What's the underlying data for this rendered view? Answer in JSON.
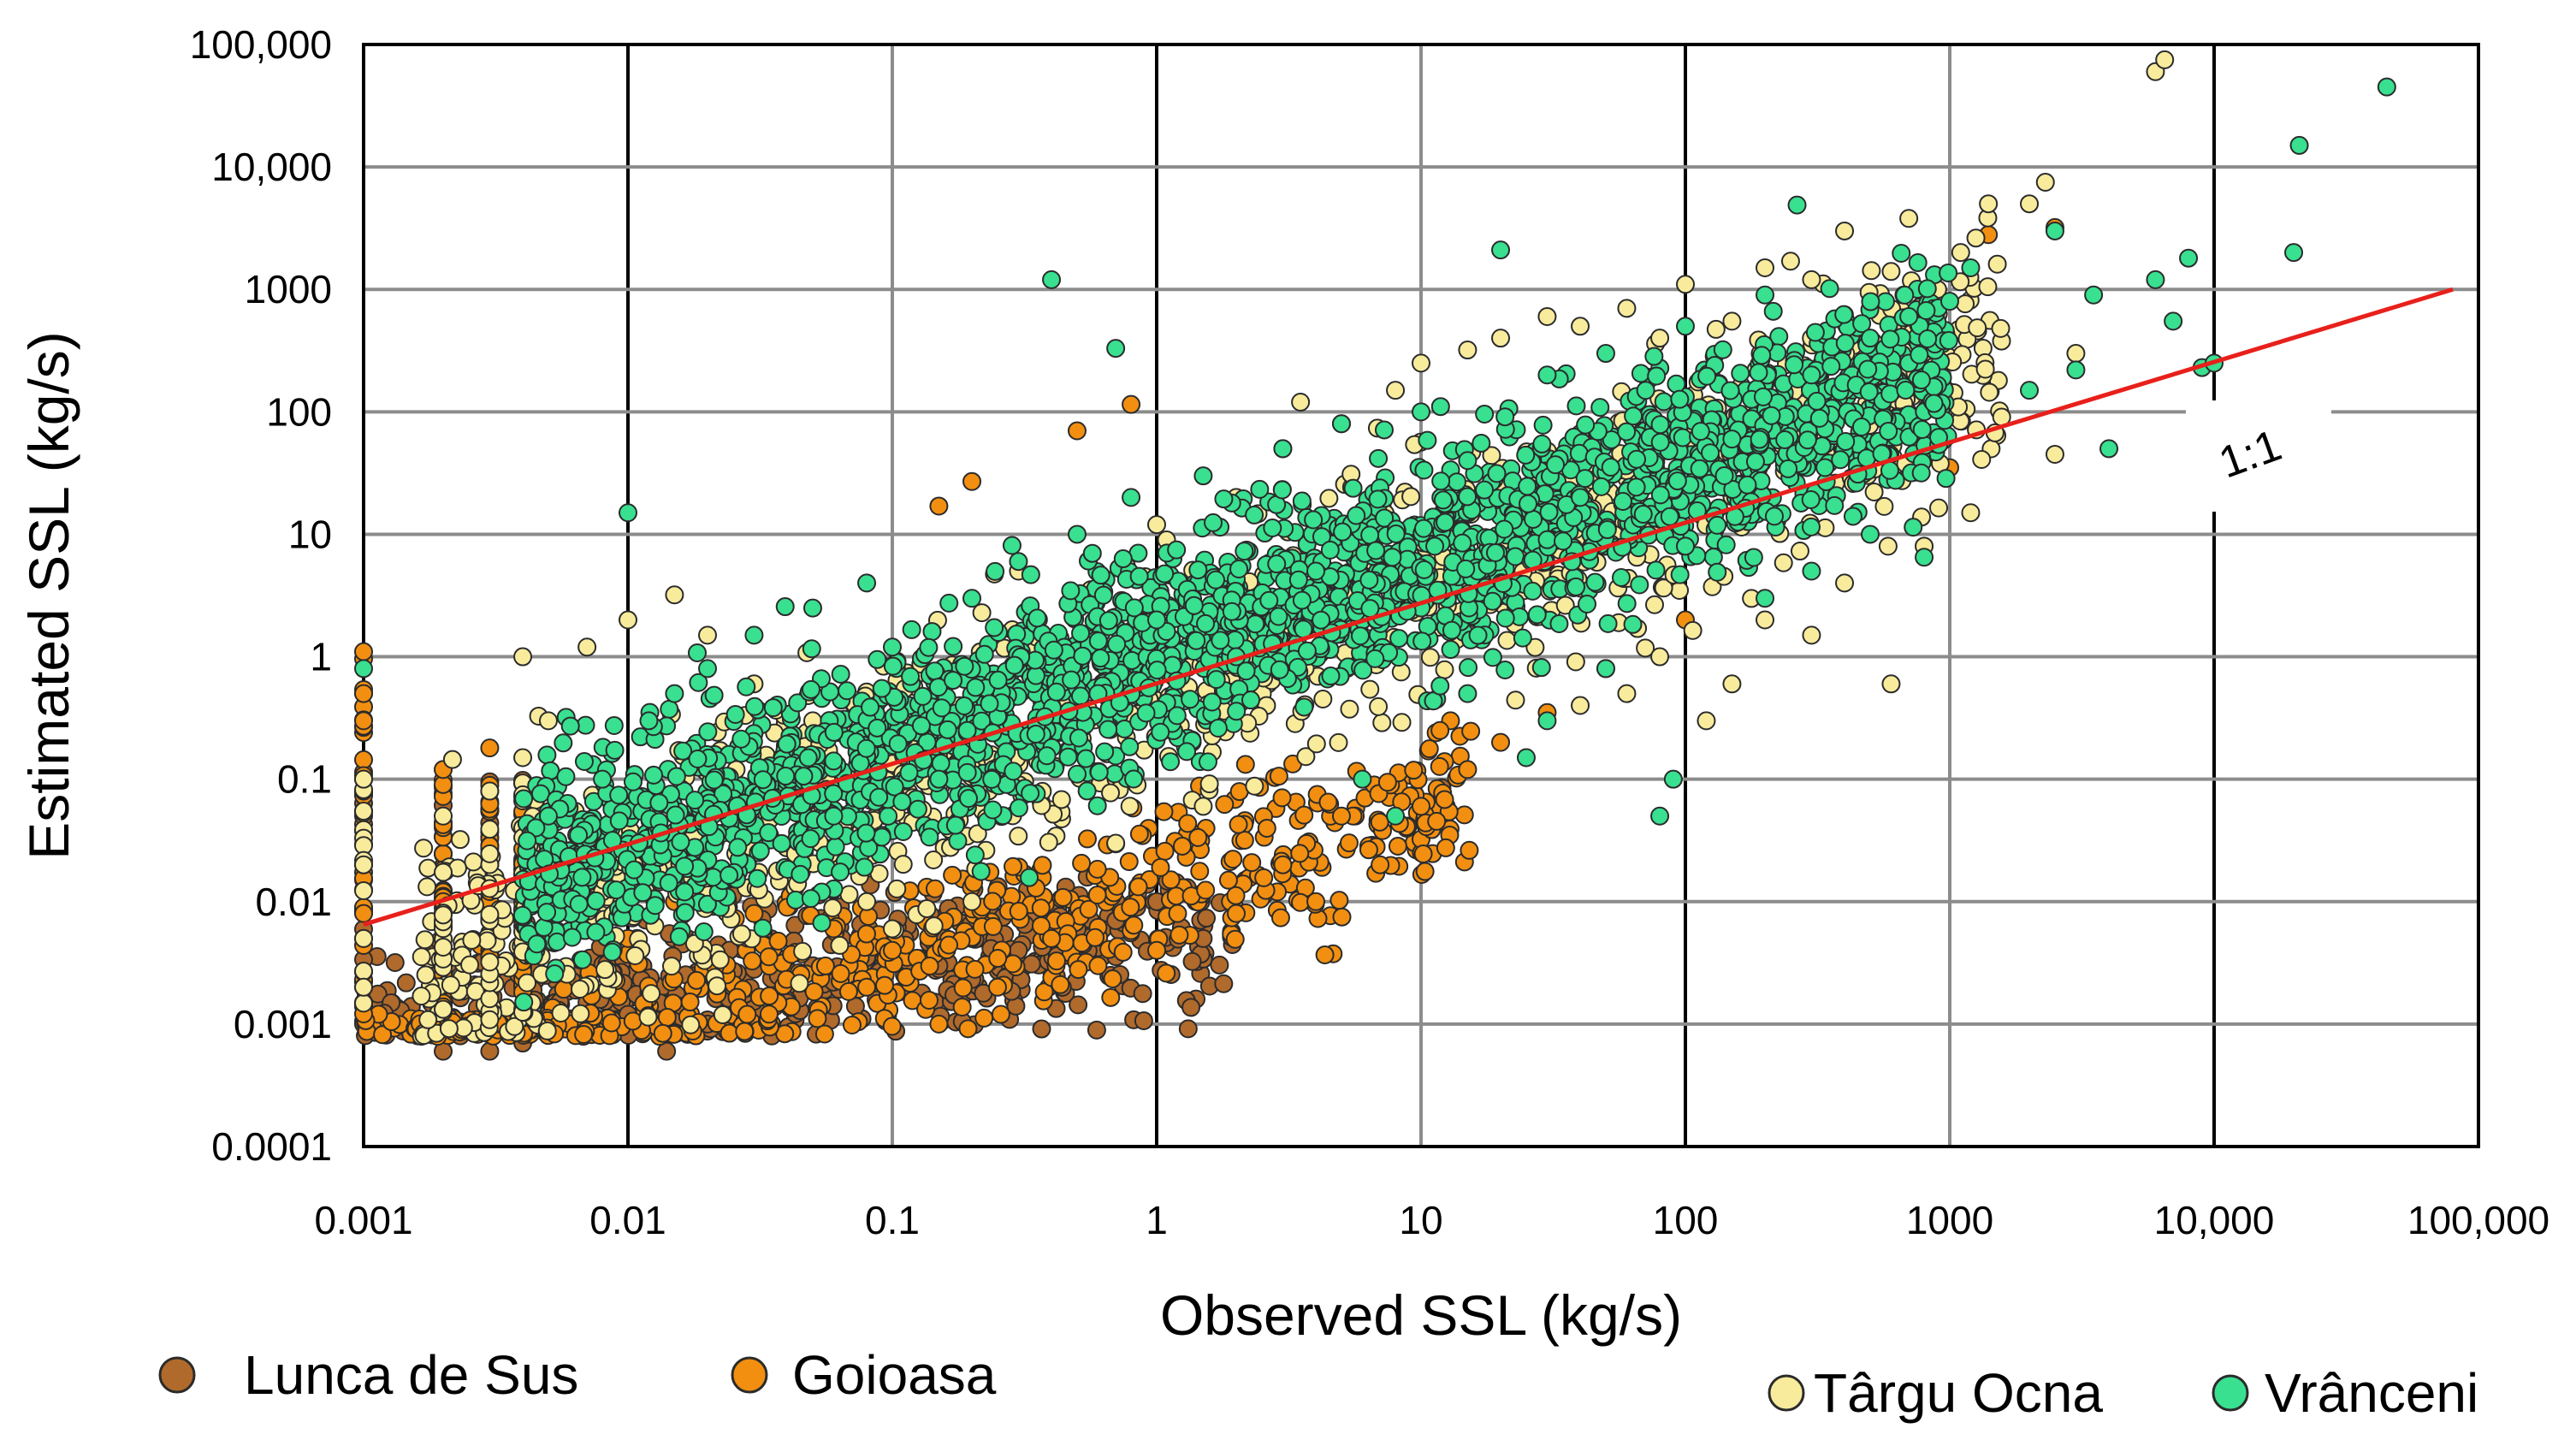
{
  "chart_data": {
    "type": "scatter",
    "title": "",
    "xlabel": "Observed SSL (kg/s)",
    "ylabel": "Estimated SSL (kg/s)",
    "xscale": "log",
    "yscale": "log",
    "xlim": [
      0.001,
      100000
    ],
    "ylim": [
      0.0001,
      100000
    ],
    "x_tick_values": [
      0.001,
      0.01,
      0.1,
      1,
      10,
      100,
      1000,
      10000,
      100000
    ],
    "x_tick_labels": [
      "0.001",
      "0.01",
      "0.1",
      "1",
      "10",
      "100",
      "1000",
      "10,000",
      "100,000"
    ],
    "y_tick_values": [
      0.0001,
      0.001,
      0.01,
      0.1,
      1,
      10,
      100,
      1000,
      10000,
      100000
    ],
    "y_tick_labels": [
      "0.0001",
      "0.001",
      "0.01",
      "0.1",
      "1",
      "10",
      "100",
      "1000",
      "10,000",
      "100,000"
    ],
    "grid": true,
    "reference_line": {
      "label": "1:1",
      "color": "#e8201b",
      "x": [
        0.001,
        80000
      ],
      "y": [
        0.0065,
        1000
      ]
    },
    "legend": {
      "placement": "bottom"
    },
    "series": [
      {
        "name": "Lunca de Sus",
        "color": "#b06a2c",
        "points": [
          [
            0.001,
            0.001
          ],
          [
            0.001,
            0.0015
          ],
          [
            0.001,
            0.002
          ],
          [
            0.002,
            0.0006
          ],
          [
            0.002,
            0.001
          ],
          [
            0.002,
            0.0018
          ],
          [
            0.003,
            0.0006
          ],
          [
            0.003,
            0.001
          ],
          [
            0.003,
            0.0025
          ],
          [
            0.004,
            0.0007
          ],
          [
            0.004,
            0.0012
          ],
          [
            0.004,
            0.002
          ],
          [
            0.006,
            0.001
          ],
          [
            0.007,
            0.0015
          ],
          [
            0.008,
            0.001
          ],
          [
            0.01,
            0.0012
          ],
          [
            0.012,
            0.0018
          ],
          [
            0.014,
            0.0006
          ],
          [
            0.016,
            0.0014
          ],
          [
            0.02,
            0.001
          ],
          [
            0.025,
            0.002
          ],
          [
            0.03,
            0.0028
          ],
          [
            0.035,
            0.0008
          ],
          [
            0.04,
            0.0015
          ],
          [
            0.05,
            0.003
          ],
          [
            0.06,
            0.0022
          ],
          [
            0.08,
            0.0035
          ],
          [
            0.1,
            0.004
          ],
          [
            0.15,
            0.003
          ],
          [
            0.2,
            0.005
          ],
          [
            0.3,
            0.004
          ],
          [
            0.5,
            0.006
          ],
          [
            0.7,
            0.007
          ],
          [
            1.0,
            0.01
          ],
          [
            1.5,
            0.005
          ],
          [
            12,
            0.085
          ]
        ]
      },
      {
        "name": "Goioasa",
        "color": "#f28f10",
        "points": [
          [
            0.001,
            1.1
          ],
          [
            0.001,
            0.5
          ],
          [
            0.001,
            0.3
          ],
          [
            0.001,
            0.1
          ],
          [
            0.001,
            0.05
          ],
          [
            0.001,
            0.02
          ],
          [
            0.001,
            0.008
          ],
          [
            0.001,
            0.005
          ],
          [
            0.002,
            0.12
          ],
          [
            0.002,
            0.01
          ],
          [
            0.003,
            0.18
          ],
          [
            0.003,
            0.02
          ],
          [
            0.004,
            0.015
          ],
          [
            0.005,
            0.006
          ],
          [
            0.007,
            0.008
          ],
          [
            0.01,
            0.005
          ],
          [
            0.015,
            0.01
          ],
          [
            0.02,
            0.012
          ],
          [
            0.03,
            0.008
          ],
          [
            0.04,
            0.009
          ],
          [
            0.06,
            0.006
          ],
          [
            0.08,
            0.002
          ],
          [
            0.1,
            0.004
          ],
          [
            0.15,
            0.001
          ],
          [
            0.15,
            17
          ],
          [
            0.2,
            27
          ],
          [
            0.25,
            0.002
          ],
          [
            0.4,
            0.005
          ],
          [
            0.5,
            70
          ],
          [
            0.6,
            0.003
          ],
          [
            0.8,
            115
          ],
          [
            1.0,
            0.004
          ],
          [
            1.2,
            0.008
          ],
          [
            2.0,
            0.008
          ],
          [
            3.0,
            0.02
          ],
          [
            4.0,
            0.01
          ],
          [
            5.0,
            0.05
          ],
          [
            7.0,
            0.02
          ],
          [
            10,
            0.06
          ],
          [
            15,
            0.12
          ],
          [
            20,
            0.2
          ],
          [
            30,
            0.35
          ],
          [
            50,
            0.8
          ],
          [
            100,
            2.0
          ],
          [
            1000,
            35
          ],
          [
            1400,
            2800
          ],
          [
            2500,
            3200
          ]
        ]
      },
      {
        "name": "Târgu Ocna",
        "color": "#f8eb9c",
        "points": [
          [
            0.001,
            0.002
          ],
          [
            0.001,
            0.005
          ],
          [
            0.001,
            0.02
          ],
          [
            0.001,
            0.1
          ],
          [
            0.002,
            0.05
          ],
          [
            0.003,
            0.08
          ],
          [
            0.004,
            0.15
          ],
          [
            0.004,
            1.0
          ],
          [
            0.005,
            0.3
          ],
          [
            0.007,
            1.2
          ],
          [
            0.01,
            2.0
          ],
          [
            0.015,
            3.2
          ],
          [
            0.02,
            1.5
          ],
          [
            0.03,
            0.6
          ],
          [
            0.05,
            0.3
          ],
          [
            0.08,
            0.01
          ],
          [
            0.1,
            0.006
          ],
          [
            0.2,
            0.01
          ],
          [
            0.3,
            5.0
          ],
          [
            0.5,
            3.0
          ],
          [
            0.7,
            0.03
          ],
          [
            1.0,
            12
          ],
          [
            1.5,
            0.06
          ],
          [
            2.0,
            20
          ],
          [
            3.0,
            50
          ],
          [
            3.5,
            120
          ],
          [
            5.0,
            80
          ],
          [
            8.0,
            150
          ],
          [
            10,
            250
          ],
          [
            15,
            320
          ],
          [
            20,
            400
          ],
          [
            30,
            600
          ],
          [
            40,
            500
          ],
          [
            60,
            700
          ],
          [
            80,
            400
          ],
          [
            100,
            1100
          ],
          [
            150,
            550
          ],
          [
            200,
            1500
          ],
          [
            250,
            1700
          ],
          [
            300,
            1200
          ],
          [
            400,
            3000
          ],
          [
            600,
            1400
          ],
          [
            700,
            3800
          ],
          [
            900,
            1000
          ],
          [
            1100,
            2000
          ],
          [
            1400,
            5000
          ],
          [
            2000,
            5000
          ],
          [
            2300,
            7500
          ],
          [
            2500,
            45
          ],
          [
            3000,
            300
          ],
          [
            6000,
            60000
          ],
          [
            6500,
            75000
          ],
          [
            40,
            0.4
          ],
          [
            60,
            0.5
          ],
          [
            80,
            1.0
          ],
          [
            120,
            0.3
          ],
          [
            150,
            0.6
          ],
          [
            200,
            2.0
          ],
          [
            300,
            1.5
          ],
          [
            400,
            4.0
          ],
          [
            600,
            0.6
          ],
          [
            800,
            8.0
          ],
          [
            1200,
            15
          ]
        ]
      },
      {
        "name": "Vrânceni",
        "color": "#38e090",
        "points": [
          [
            0.001,
            0.8
          ],
          [
            0.005,
            0.05
          ],
          [
            0.008,
            0.1
          ],
          [
            0.01,
            15
          ],
          [
            0.012,
            0.3
          ],
          [
            0.015,
            0.5
          ],
          [
            0.02,
            0.8
          ],
          [
            0.03,
            1.5
          ],
          [
            0.05,
            2.5
          ],
          [
            0.06,
            0.05
          ],
          [
            0.08,
            4.0
          ],
          [
            0.1,
            1.2
          ],
          [
            0.15,
            0.1
          ],
          [
            0.2,
            3.0
          ],
          [
            0.3,
            6.0
          ],
          [
            0.4,
            1200
          ],
          [
            0.5,
            10
          ],
          [
            0.6,
            0.5
          ],
          [
            0.7,
            330
          ],
          [
            0.8,
            20
          ],
          [
            1.0,
            2.0
          ],
          [
            1.5,
            30
          ],
          [
            2.0,
            1.0
          ],
          [
            3.0,
            50
          ],
          [
            4.0,
            5.0
          ],
          [
            5.0,
            80
          ],
          [
            6.0,
            0.1
          ],
          [
            8.0,
            0.05
          ],
          [
            10,
            100
          ],
          [
            15,
            40
          ],
          [
            20,
            2100
          ],
          [
            25,
            0.15
          ],
          [
            30,
            200
          ],
          [
            40,
            20
          ],
          [
            50,
            300
          ],
          [
            80,
            0.05
          ],
          [
            90,
            0.1
          ],
          [
            100,
            500
          ],
          [
            150,
            60
          ],
          [
            200,
            900
          ],
          [
            300,
            200
          ],
          [
            500,
            400
          ],
          [
            700,
            600
          ],
          [
            1000,
            800
          ],
          [
            1200,
            1500
          ],
          [
            2000,
            150
          ],
          [
            2500,
            3000
          ],
          [
            3000,
            220
          ],
          [
            3500,
            900
          ],
          [
            4000,
            50
          ],
          [
            6000,
            1200
          ],
          [
            7000,
            550
          ],
          [
            8000,
            1800
          ],
          [
            9000,
            230
          ],
          [
            10000,
            250
          ],
          [
            20000,
            2000
          ],
          [
            21000,
            15000
          ],
          [
            45000,
            45000
          ],
          [
            800,
            6.5
          ],
          [
            500,
            10
          ],
          [
            300,
            5.0
          ],
          [
            200,
            3.0
          ],
          [
            100,
            8.0
          ],
          [
            50,
            0.8
          ],
          [
            30,
            0.3
          ],
          [
            15,
            0.5
          ]
        ]
      }
    ]
  }
}
